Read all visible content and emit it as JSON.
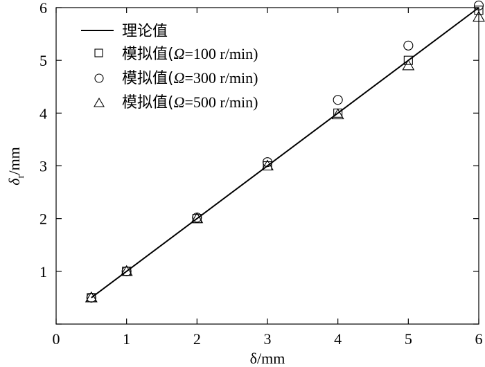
{
  "chart_data": {
    "type": "scatter",
    "xlabel": "δ/mm",
    "ylabel_main": "δ",
    "ylabel_sub": "r",
    "ylabel_unit": "/mm",
    "xlim": [
      0,
      6
    ],
    "ylim": [
      0,
      6
    ],
    "xticks": [
      "0",
      "1",
      "2",
      "3",
      "4",
      "5",
      "6"
    ],
    "yticks": [
      "0",
      "1",
      "2",
      "3",
      "4",
      "5",
      "6"
    ],
    "grid": false,
    "legend_position": "top-left",
    "theory": {
      "name": "理论值",
      "x": [
        0.5,
        6
      ],
      "y": [
        0.5,
        6
      ]
    },
    "series": [
      {
        "name_prefix": "模拟值(",
        "name_symbol": "Ω",
        "name_suffix": "=100 r/min)",
        "marker": "square",
        "x": [
          0.5,
          1,
          2,
          3,
          4,
          5,
          6
        ],
        "y": [
          0.5,
          1.0,
          2.0,
          3.0,
          4.0,
          5.0,
          5.95
        ]
      },
      {
        "name_prefix": "模拟值(",
        "name_symbol": "Ω",
        "name_suffix": "=300 r/min)",
        "marker": "circle",
        "x": [
          0.5,
          1,
          2,
          3,
          4,
          5,
          6
        ],
        "y": [
          0.5,
          1.0,
          2.02,
          3.07,
          4.25,
          5.28,
          6.04
        ]
      },
      {
        "name_prefix": "模拟值(",
        "name_symbol": "Ω",
        "name_suffix": "=500 r/min)",
        "marker": "triangle",
        "x": [
          0.5,
          1,
          2,
          3,
          4,
          5,
          6
        ],
        "y": [
          0.5,
          1.0,
          2.0,
          3.0,
          3.97,
          4.9,
          5.82
        ]
      }
    ]
  }
}
